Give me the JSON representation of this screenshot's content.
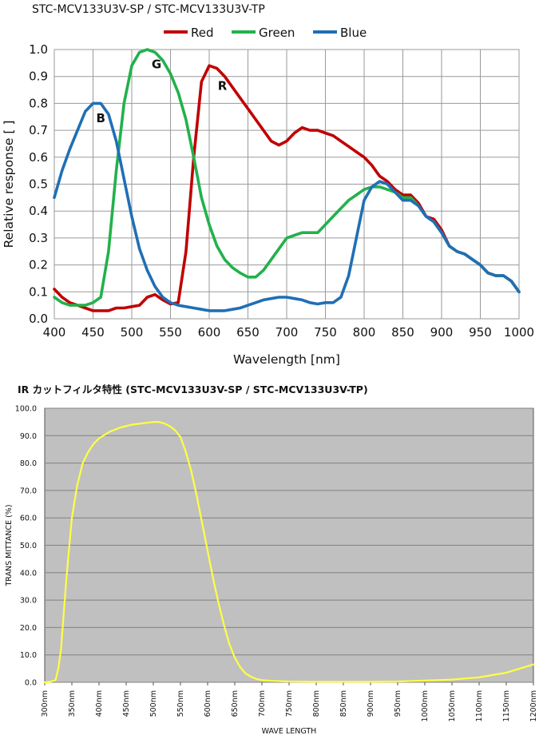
{
  "chart_data": [
    {
      "type": "line",
      "title": "STC-MCV133U3V-SP / STC-MCV133U3V-TP",
      "xlabel": "Wavelength [nm]",
      "ylabel": "Relative response [ ]",
      "xlim": [
        400,
        1000
      ],
      "ylim": [
        0,
        1.0
      ],
      "x_ticks": [
        "400",
        "450",
        "500",
        "550",
        "600",
        "650",
        "700",
        "750",
        "800",
        "850",
        "900",
        "950",
        "1000"
      ],
      "y_ticks": [
        "0.0",
        "0.1",
        "0.2",
        "0.3",
        "0.4",
        "0.5",
        "0.6",
        "0.7",
        "0.8",
        "0.9",
        "1.0"
      ],
      "grid": true,
      "legend": "top",
      "annotations": [
        {
          "text": "B",
          "x": 460,
          "y": 0.73
        },
        {
          "text": "G",
          "x": 532,
          "y": 0.93
        },
        {
          "text": "R",
          "x": 617,
          "y": 0.85
        }
      ],
      "series": [
        {
          "name": "Red",
          "color": "#c00000",
          "x": [
            400,
            410,
            420,
            430,
            440,
            450,
            460,
            470,
            480,
            490,
            500,
            510,
            520,
            530,
            540,
            550,
            560,
            570,
            580,
            590,
            600,
            610,
            620,
            630,
            640,
            650,
            660,
            670,
            680,
            690,
            700,
            710,
            720,
            730,
            740,
            750,
            760,
            770,
            780,
            790,
            800,
            810,
            820,
            830,
            840,
            850,
            860,
            870,
            880,
            890,
            900,
            910,
            920,
            930,
            940,
            950,
            960,
            970,
            980,
            990,
            1000
          ],
          "y": [
            0.11,
            0.08,
            0.06,
            0.05,
            0.04,
            0.03,
            0.03,
            0.03,
            0.04,
            0.04,
            0.045,
            0.05,
            0.08,
            0.09,
            0.07,
            0.055,
            0.06,
            0.25,
            0.6,
            0.88,
            0.94,
            0.93,
            0.9,
            0.86,
            0.82,
            0.78,
            0.74,
            0.7,
            0.66,
            0.645,
            0.66,
            0.69,
            0.71,
            0.7,
            0.7,
            0.69,
            0.68,
            0.66,
            0.64,
            0.62,
            0.6,
            0.57,
            0.53,
            0.51,
            0.48,
            0.46,
            0.46,
            0.43,
            0.38,
            0.37,
            0.33,
            0.27,
            0.25,
            0.24,
            0.22,
            0.2,
            0.17,
            0.16,
            0.16,
            0.14,
            0.1
          ]
        },
        {
          "name": "Green",
          "color": "#22b14c",
          "x": [
            400,
            410,
            420,
            430,
            440,
            450,
            460,
            470,
            480,
            490,
            500,
            510,
            520,
            530,
            540,
            550,
            560,
            570,
            580,
            590,
            600,
            610,
            620,
            630,
            640,
            650,
            660,
            670,
            680,
            690,
            700,
            710,
            720,
            730,
            740,
            750,
            760,
            770,
            780,
            790,
            800,
            810,
            820,
            830,
            840,
            850,
            860,
            870,
            880,
            890,
            900,
            910,
            920,
            930,
            940,
            950,
            960,
            970,
            980,
            990,
            1000
          ],
          "y": [
            0.08,
            0.06,
            0.05,
            0.05,
            0.05,
            0.06,
            0.08,
            0.25,
            0.55,
            0.8,
            0.94,
            0.99,
            1.0,
            0.99,
            0.96,
            0.91,
            0.84,
            0.74,
            0.6,
            0.45,
            0.35,
            0.27,
            0.22,
            0.19,
            0.17,
            0.155,
            0.155,
            0.18,
            0.22,
            0.26,
            0.3,
            0.31,
            0.32,
            0.32,
            0.32,
            0.35,
            0.38,
            0.41,
            0.44,
            0.46,
            0.48,
            0.49,
            0.49,
            0.48,
            0.47,
            0.45,
            0.45,
            0.42,
            0.38,
            0.36,
            0.32,
            0.27,
            0.25,
            0.24,
            0.22,
            0.2,
            0.17,
            0.16,
            0.16,
            0.14,
            0.1
          ]
        },
        {
          "name": "Blue",
          "color": "#1f6fb5",
          "x": [
            400,
            410,
            420,
            430,
            440,
            450,
            460,
            470,
            480,
            490,
            500,
            510,
            520,
            530,
            540,
            550,
            560,
            570,
            580,
            590,
            600,
            610,
            620,
            630,
            640,
            650,
            660,
            670,
            680,
            690,
            700,
            710,
            720,
            730,
            740,
            750,
            760,
            770,
            780,
            790,
            800,
            810,
            820,
            830,
            840,
            850,
            860,
            870,
            880,
            890,
            900,
            910,
            920,
            930,
            940,
            950,
            960,
            970,
            980,
            990,
            1000
          ],
          "y": [
            0.45,
            0.55,
            0.63,
            0.7,
            0.77,
            0.8,
            0.8,
            0.76,
            0.66,
            0.52,
            0.38,
            0.26,
            0.18,
            0.12,
            0.08,
            0.06,
            0.05,
            0.045,
            0.04,
            0.035,
            0.03,
            0.03,
            0.03,
            0.035,
            0.04,
            0.05,
            0.06,
            0.07,
            0.075,
            0.08,
            0.08,
            0.075,
            0.07,
            0.06,
            0.055,
            0.06,
            0.06,
            0.08,
            0.16,
            0.3,
            0.44,
            0.49,
            0.51,
            0.5,
            0.47,
            0.44,
            0.44,
            0.42,
            0.38,
            0.36,
            0.32,
            0.27,
            0.25,
            0.24,
            0.22,
            0.2,
            0.17,
            0.16,
            0.16,
            0.14,
            0.1
          ]
        }
      ]
    },
    {
      "type": "line",
      "title": "IR カットフィルタ特性  (STC-MCV133U3V-SP / STC-MCV133U3V-TP)",
      "xlabel": "WAVE LENGTH",
      "ylabel": "TRANS MITTANCE (%)",
      "xlim": [
        300,
        1200
      ],
      "ylim": [
        0,
        100
      ],
      "x_ticks": [
        "300nm",
        "350nm",
        "400nm",
        "450nm",
        "500nm",
        "550nm",
        "600nm",
        "650nm",
        "700nm",
        "750nm",
        "800nm",
        "850nm",
        "900nm",
        "950nm",
        "1000nm",
        "1050nm",
        "1100nm",
        "1150nm",
        "1200nm"
      ],
      "y_ticks": [
        "0.0",
        "10.0",
        "20.0",
        "30.0",
        "40.0",
        "50.0",
        "60.0",
        "70.0",
        "80.0",
        "90.0",
        "100.0"
      ],
      "grid": true,
      "background_color": "#c0c0c0",
      "series": [
        {
          "color": "#ffff44",
          "x": [
            300,
            310,
            320,
            325,
            330,
            340,
            350,
            360,
            370,
            380,
            390,
            400,
            420,
            440,
            460,
            480,
            500,
            510,
            520,
            530,
            540,
            550,
            560,
            570,
            580,
            590,
            600,
            610,
            620,
            630,
            640,
            650,
            660,
            670,
            680,
            690,
            700,
            720,
            750,
            800,
            850,
            900,
            950,
            1000,
            1050,
            1100,
            1150,
            1200
          ],
          "y": [
            0,
            0.2,
            0.8,
            5,
            12,
            38,
            60,
            72,
            80,
            84,
            87,
            89,
            91.5,
            93,
            94,
            94.5,
            95,
            95,
            94.5,
            93.5,
            92,
            89.5,
            84,
            77,
            68,
            58,
            48,
            38,
            29,
            21,
            14,
            9,
            5.5,
            3.2,
            2,
            1.2,
            0.8,
            0.5,
            0.3,
            0.2,
            0.2,
            0.2,
            0.3,
            0.6,
            1,
            1.8,
            3.5,
            6.5
          ]
        }
      ]
    }
  ]
}
